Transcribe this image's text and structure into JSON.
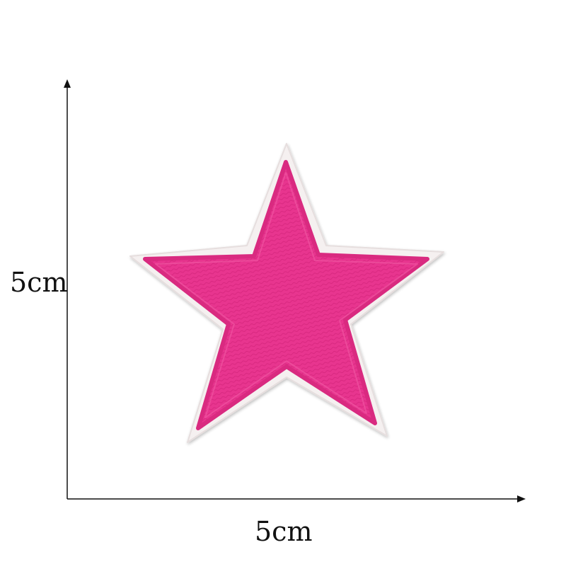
{
  "dimensions": {
    "height_label": "5cm",
    "width_label": "5cm"
  },
  "product": {
    "shape": "star",
    "fill_color": "#e8348f",
    "stitch_color": "#d92a80",
    "border_color": "#f4efef"
  },
  "axis_color": "#111111"
}
